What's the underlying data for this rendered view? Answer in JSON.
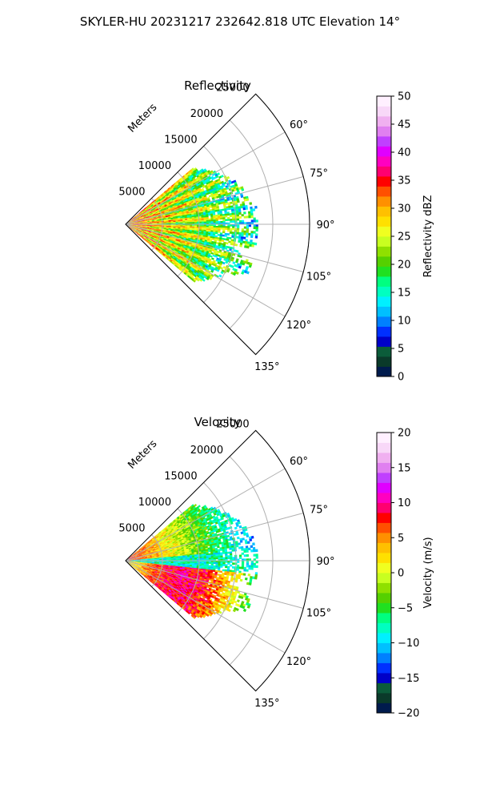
{
  "figure": {
    "suptitle": "SKYLER-HU  20231217  232642.818 UTC Elevation 14°"
  },
  "chart_data": [
    {
      "type": "heatmap",
      "subtype": "polar-sector-radar",
      "title": "Reflectivity",
      "radial_axis_label": "Meters",
      "radial_ticks": [
        5000,
        10000,
        15000,
        20000,
        25000
      ],
      "radial_tick_labels": [
        "5000",
        "10000",
        "15000",
        "20000",
        "25000"
      ],
      "radial_range": [
        0,
        25000
      ],
      "azimuth_range_deg": [
        45,
        135
      ],
      "azimuth_ticks_deg": [
        60,
        75,
        90,
        105,
        120,
        135
      ],
      "azimuth_tick_labels": [
        "60°",
        "75°",
        "90°",
        "105°",
        "120°",
        "135°"
      ],
      "grid": true,
      "colorbar": {
        "label": "Reflectivity dBZ",
        "range": [
          0,
          50
        ],
        "ticks": [
          0,
          5,
          10,
          15,
          20,
          25,
          30,
          35,
          40,
          45,
          50
        ],
        "tick_labels": [
          "0",
          "5",
          "10",
          "15",
          "20",
          "25",
          "30",
          "35",
          "40",
          "45",
          "50"
        ],
        "colors": [
          "#001b4d",
          "#0a3a2a",
          "#0b5c3a",
          "#0000c8",
          "#0030ff",
          "#0080ff",
          "#00c0ff",
          "#00f0ff",
          "#00ffc0",
          "#00ff80",
          "#20e020",
          "#55d000",
          "#8fe000",
          "#c8ff20",
          "#f0ff20",
          "#ffe000",
          "#ffc000",
          "#ff9000",
          "#ff5000",
          "#ff0000",
          "#ff0070",
          "#ff00c0",
          "#e000ff",
          "#c040ff",
          "#e080f0",
          "#f0b0f0",
          "#f8d8f8",
          "#fff0ff"
        ]
      },
      "echo_extent_m": [
        0,
        18000
      ],
      "echo_azimuth_deg": [
        50,
        130
      ]
    },
    {
      "type": "heatmap",
      "subtype": "polar-sector-radar",
      "title": "Velocity",
      "radial_axis_label": "Meters",
      "radial_ticks": [
        5000,
        10000,
        15000,
        20000,
        25000
      ],
      "radial_tick_labels": [
        "5000",
        "10000",
        "15000",
        "20000",
        "25000"
      ],
      "radial_range": [
        0,
        25000
      ],
      "azimuth_range_deg": [
        45,
        135
      ],
      "azimuth_ticks_deg": [
        60,
        75,
        90,
        105,
        120,
        135
      ],
      "azimuth_tick_labels": [
        "60°",
        "75°",
        "90°",
        "105°",
        "120°",
        "135°"
      ],
      "grid": true,
      "colorbar": {
        "label": "Velocity (m/s)",
        "range": [
          -20,
          20
        ],
        "ticks": [
          -20,
          -15,
          -10,
          -5,
          0,
          5,
          10,
          15,
          20
        ],
        "tick_labels": [
          "−20",
          "−15",
          "−10",
          "−5",
          "0",
          "5",
          "10",
          "15",
          "20"
        ],
        "colors": [
          "#001b4d",
          "#0a3a2a",
          "#0b5c3a",
          "#0000c8",
          "#0030ff",
          "#0080ff",
          "#00c0ff",
          "#00f0ff",
          "#00ffc0",
          "#00ff80",
          "#20e020",
          "#55d000",
          "#8fe000",
          "#c8ff20",
          "#f0ff20",
          "#ffe000",
          "#ffc000",
          "#ff9000",
          "#ff5000",
          "#ff0000",
          "#ff0070",
          "#ff00c0",
          "#e000ff",
          "#c040ff",
          "#e080f0",
          "#f0b0f0",
          "#f8d8f8",
          "#fff0ff"
        ]
      },
      "echo_extent_m": [
        0,
        18000
      ],
      "echo_azimuth_deg": [
        50,
        130
      ]
    }
  ]
}
